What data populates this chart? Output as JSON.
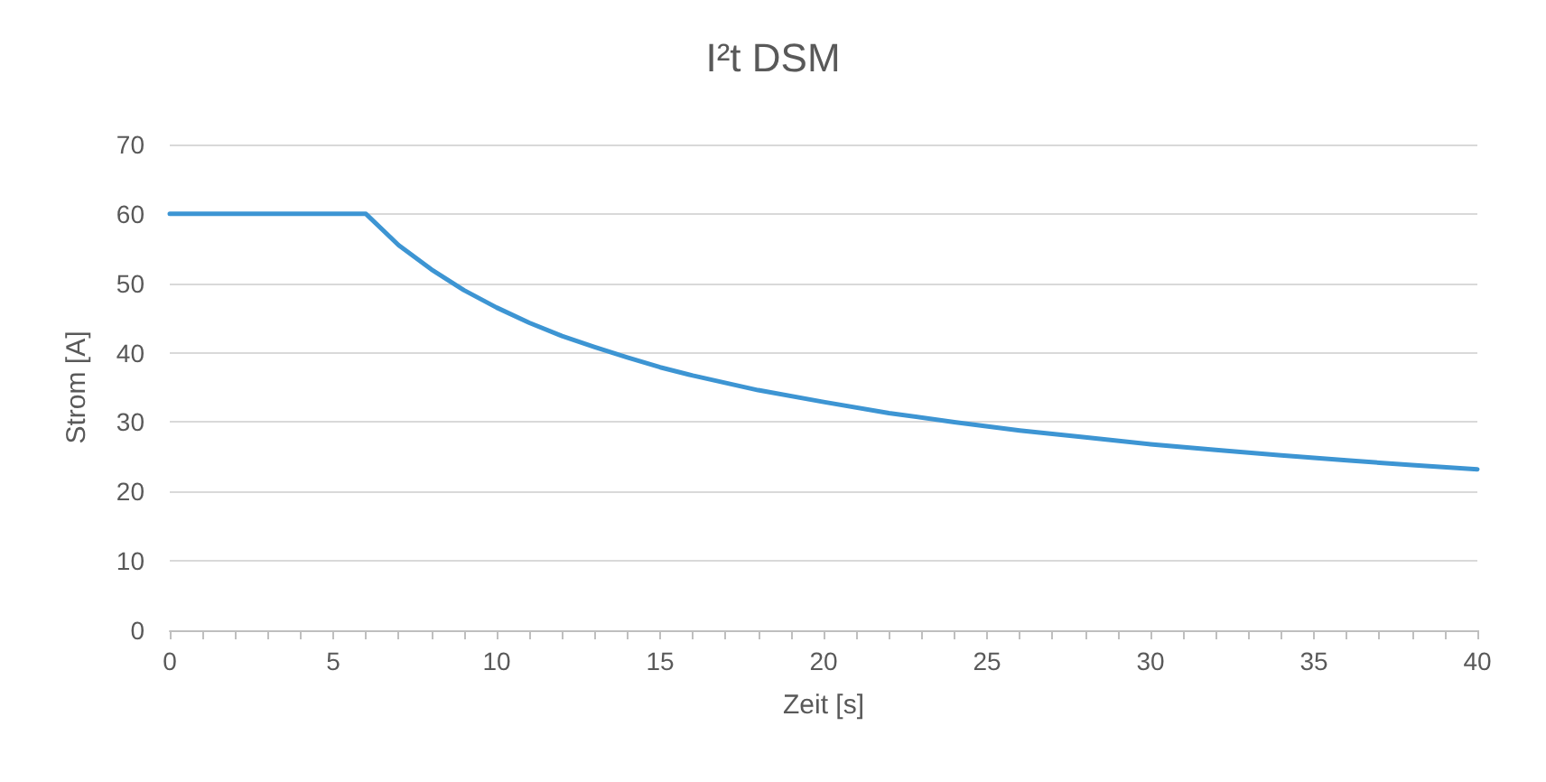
{
  "chart_data": {
    "type": "line",
    "title": "I²t DSM",
    "xlabel": "Zeit [s]",
    "ylabel": "Strom [A]",
    "x": [
      0,
      1,
      2,
      3,
      4,
      5,
      6,
      7,
      8,
      9,
      10,
      11,
      12,
      13,
      14,
      15,
      16,
      18,
      20,
      22,
      24,
      26,
      28,
      30,
      32,
      34,
      36,
      38,
      40
    ],
    "series": [
      {
        "color": "#3d95d3",
        "values": [
          60,
          60,
          60,
          60,
          60,
          60,
          60,
          55.5,
          52,
          49,
          46.5,
          44.3,
          42.4,
          40.8,
          39.3,
          37.9,
          36.7,
          34.6,
          32.9,
          31.3,
          30,
          28.8,
          27.8,
          26.8,
          26,
          25.2,
          24.5,
          23.8,
          23.2
        ]
      }
    ],
    "xlim": [
      0,
      40
    ],
    "ylim": [
      0,
      70
    ],
    "xticks": [
      0,
      {
        "value": 1,
        "label": null
      },
      {
        "value": 2,
        "label": null
      },
      {
        "value": 3,
        "label": null
      },
      {
        "value": 4,
        "label": null
      },
      5,
      {
        "value": 6,
        "label": null
      },
      {
        "value": 7,
        "label": null
      },
      {
        "value": 8,
        "label": null
      },
      {
        "value": 9,
        "label": null
      },
      10,
      {
        "value": 11,
        "label": null
      },
      {
        "value": 12,
        "label": null
      },
      {
        "value": 13,
        "label": null
      },
      {
        "value": 14,
        "label": null
      },
      15,
      {
        "value": 16,
        "label": null
      },
      {
        "value": 17,
        "label": null
      },
      {
        "value": 18,
        "label": null
      },
      {
        "value": 19,
        "label": null
      },
      20,
      {
        "value": 21,
        "label": null
      },
      {
        "value": 22,
        "label": null
      },
      {
        "value": 23,
        "label": null
      },
      {
        "value": 24,
        "label": null
      },
      25,
      {
        "value": 26,
        "label": null
      },
      {
        "value": 27,
        "label": null
      },
      {
        "value": 28,
        "label": null
      },
      {
        "value": 29,
        "label": null
      },
      30,
      {
        "value": 31,
        "label": null
      },
      {
        "value": 32,
        "label": null
      },
      {
        "value": 33,
        "label": null
      },
      {
        "value": 34,
        "label": null
      },
      35,
      {
        "value": 36,
        "label": null
      },
      {
        "value": 37,
        "label": null
      },
      {
        "value": 38,
        "label": null
      },
      {
        "value": 39,
        "label": null
      },
      40
    ],
    "yticks": [
      0,
      10,
      20,
      30,
      40,
      50,
      60,
      70
    ],
    "grid": "y",
    "marker": "none",
    "line_style": "solid"
  }
}
